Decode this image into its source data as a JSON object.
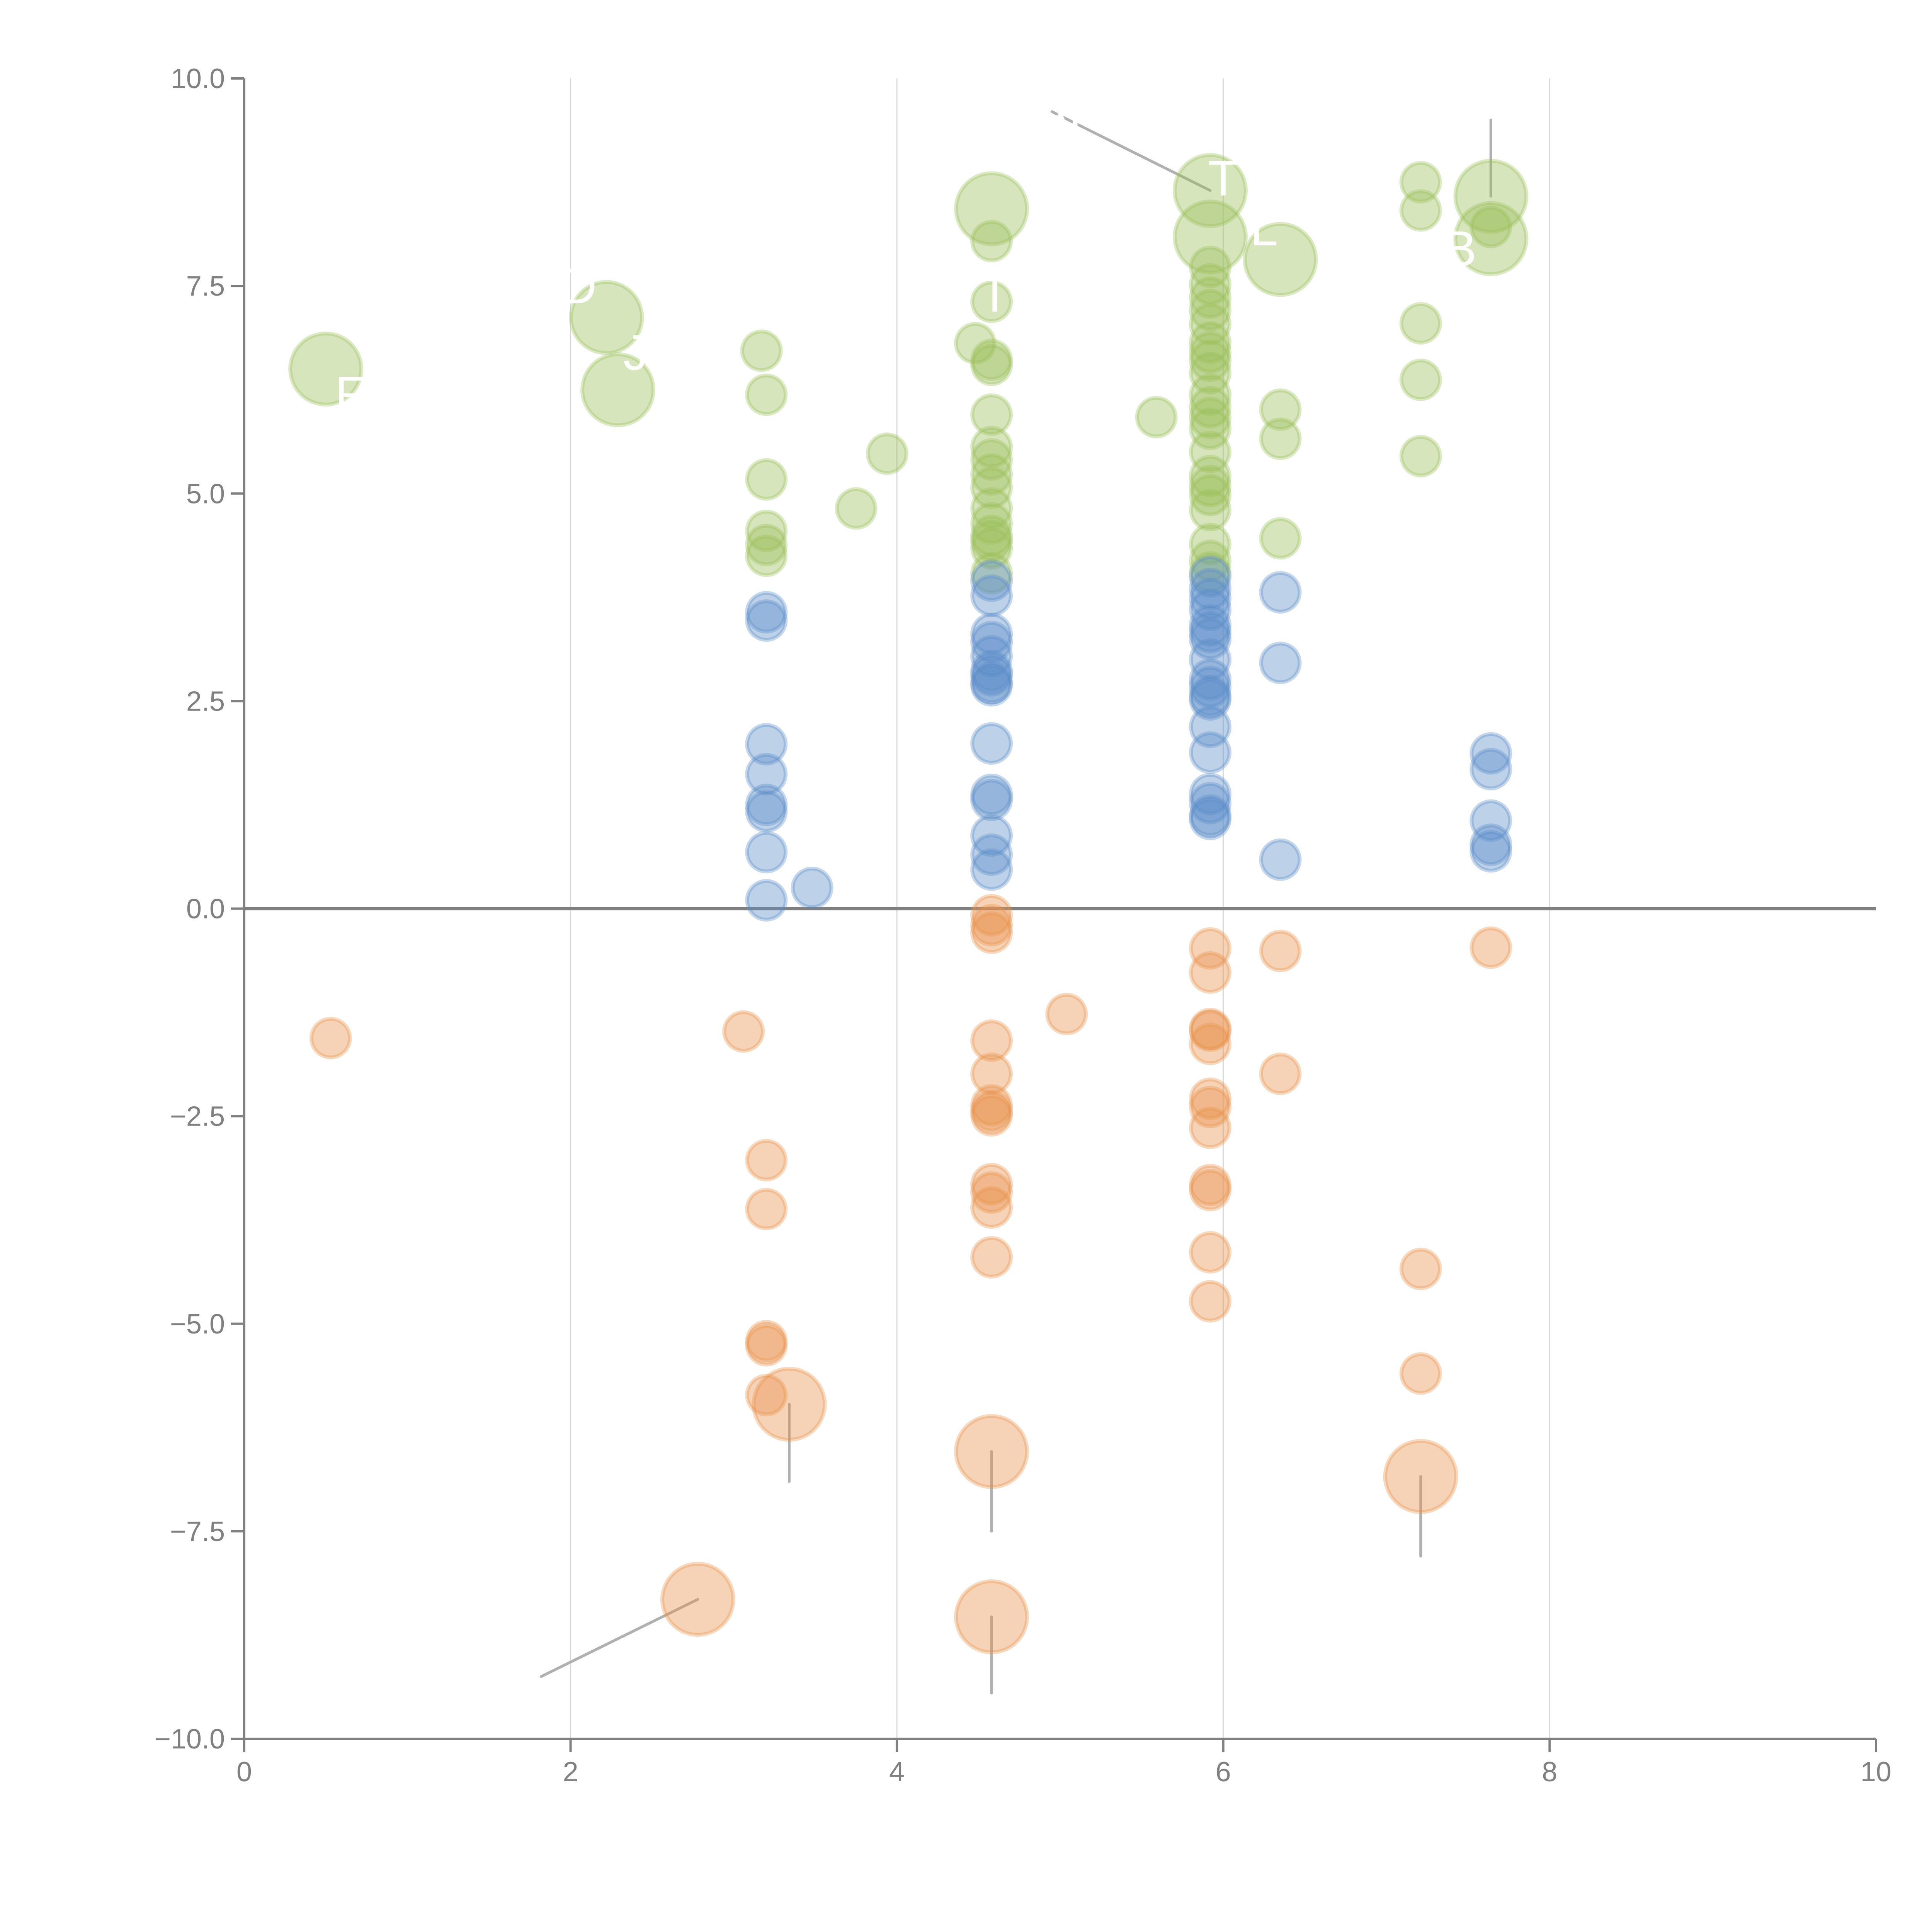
{
  "chart_data": {
    "type": "scatter",
    "subtype": "bubble",
    "title": "",
    "xlabel": "",
    "ylabel": "",
    "xlim": [
      0,
      10
    ],
    "ylim": [
      -10,
      10
    ],
    "x_ticks": [
      "0",
      "2",
      "4",
      "6",
      "8",
      "10"
    ],
    "x_tick_values": [
      0,
      2,
      4,
      6,
      8,
      10
    ],
    "y_ticks": [
      "10.0",
      "7.5",
      "5.0",
      "2.5",
      "0.0",
      "−2.5",
      "−5.0",
      "−7.5",
      "−10.0"
    ],
    "y_tick_values": [
      10,
      7.5,
      5,
      2.5,
      0,
      -2.5,
      -5,
      -7.5,
      -10
    ],
    "grid": "vertical",
    "zero_line": true,
    "legend": "none",
    "series": [
      {
        "name": "green",
        "color": "#9cbf5a",
        "points": [
          {
            "x": 0.5,
            "y": 6.5,
            "size": "large"
          },
          {
            "x": 2.22,
            "y": 7.12,
            "size": "large"
          },
          {
            "x": 2.29,
            "y": 6.25,
            "size": "large"
          },
          {
            "x": 3.17,
            "y": 6.72
          },
          {
            "x": 3.2,
            "y": 6.19
          },
          {
            "x": 3.2,
            "y": 5.17
          },
          {
            "x": 3.2,
            "y": 4.55
          },
          {
            "x": 3.2,
            "y": 4.38
          },
          {
            "x": 3.2,
            "y": 4.25
          },
          {
            "x": 3.75,
            "y": 4.82
          },
          {
            "x": 3.94,
            "y": 5.48
          },
          {
            "x": 4.48,
            "y": 6.81
          },
          {
            "x": 4.58,
            "y": 8.43,
            "size": "large"
          },
          {
            "x": 4.58,
            "y": 8.04
          },
          {
            "x": 4.58,
            "y": 7.31
          },
          {
            "x": 4.58,
            "y": 6.61
          },
          {
            "x": 4.58,
            "y": 6.55
          },
          {
            "x": 4.58,
            "y": 5.95
          },
          {
            "x": 4.58,
            "y": 5.56
          },
          {
            "x": 4.58,
            "y": 5.41
          },
          {
            "x": 4.58,
            "y": 5.23
          },
          {
            "x": 4.58,
            "y": 5.07
          },
          {
            "x": 4.58,
            "y": 4.82
          },
          {
            "x": 4.58,
            "y": 4.64
          },
          {
            "x": 4.58,
            "y": 4.49
          },
          {
            "x": 4.58,
            "y": 4.43
          },
          {
            "x": 4.58,
            "y": 4.34
          },
          {
            "x": 4.58,
            "y": 4.04
          },
          {
            "x": 5.59,
            "y": 5.92
          },
          {
            "x": 5.92,
            "y": 8.65,
            "size": "large"
          },
          {
            "x": 5.92,
            "y": 8.09,
            "size": "large"
          },
          {
            "x": 5.92,
            "y": 7.73
          },
          {
            "x": 5.92,
            "y": 7.52
          },
          {
            "x": 5.92,
            "y": 7.36
          },
          {
            "x": 5.92,
            "y": 7.21
          },
          {
            "x": 5.92,
            "y": 7.04
          },
          {
            "x": 5.92,
            "y": 6.82
          },
          {
            "x": 5.92,
            "y": 6.7
          },
          {
            "x": 5.92,
            "y": 6.6
          },
          {
            "x": 5.92,
            "y": 6.45
          },
          {
            "x": 5.92,
            "y": 6.19
          },
          {
            "x": 5.92,
            "y": 6.04
          },
          {
            "x": 5.92,
            "y": 5.91
          },
          {
            "x": 5.92,
            "y": 5.78
          },
          {
            "x": 5.92,
            "y": 5.5
          },
          {
            "x": 5.92,
            "y": 5.21
          },
          {
            "x": 5.92,
            "y": 5.09
          },
          {
            "x": 5.92,
            "y": 4.98
          },
          {
            "x": 5.92,
            "y": 4.8
          },
          {
            "x": 5.92,
            "y": 4.39
          },
          {
            "x": 5.92,
            "y": 4.19
          },
          {
            "x": 5.92,
            "y": 4.05
          },
          {
            "x": 6.35,
            "y": 7.82,
            "size": "large"
          },
          {
            "x": 6.35,
            "y": 6.01
          },
          {
            "x": 6.35,
            "y": 5.66
          },
          {
            "x": 6.35,
            "y": 4.46
          },
          {
            "x": 7.21,
            "y": 8.75
          },
          {
            "x": 7.21,
            "y": 8.41
          },
          {
            "x": 7.21,
            "y": 7.05
          },
          {
            "x": 7.21,
            "y": 6.37
          },
          {
            "x": 7.21,
            "y": 5.45
          },
          {
            "x": 7.64,
            "y": 8.58,
            "size": "large"
          },
          {
            "x": 7.64,
            "y": 8.07,
            "size": "large"
          },
          {
            "x": 7.64,
            "y": 8.21
          }
        ]
      },
      {
        "name": "blue",
        "color": "#5b8cc8",
        "points": [
          {
            "x": 3.2,
            "y": 3.57
          },
          {
            "x": 3.2,
            "y": 3.47
          },
          {
            "x": 3.2,
            "y": 1.98
          },
          {
            "x": 3.2,
            "y": 1.62
          },
          {
            "x": 3.2,
            "y": 1.25
          },
          {
            "x": 3.2,
            "y": 1.17
          },
          {
            "x": 3.2,
            "y": 0.68
          },
          {
            "x": 3.2,
            "y": 0.1
          },
          {
            "x": 3.48,
            "y": 0.25
          },
          {
            "x": 4.58,
            "y": 3.95
          },
          {
            "x": 4.58,
            "y": 3.77
          },
          {
            "x": 4.58,
            "y": 3.31
          },
          {
            "x": 4.58,
            "y": 3.21
          },
          {
            "x": 4.58,
            "y": 3.04
          },
          {
            "x": 4.58,
            "y": 2.86
          },
          {
            "x": 4.58,
            "y": 2.81
          },
          {
            "x": 4.58,
            "y": 2.72
          },
          {
            "x": 4.58,
            "y": 2.69
          },
          {
            "x": 4.58,
            "y": 1.99
          },
          {
            "x": 4.58,
            "y": 1.37
          },
          {
            "x": 4.58,
            "y": 1.31
          },
          {
            "x": 4.58,
            "y": 0.88
          },
          {
            "x": 4.58,
            "y": 0.65
          },
          {
            "x": 4.58,
            "y": 0.47
          },
          {
            "x": 5.92,
            "y": 4.0
          },
          {
            "x": 5.92,
            "y": 3.85
          },
          {
            "x": 5.92,
            "y": 3.73
          },
          {
            "x": 5.92,
            "y": 3.6
          },
          {
            "x": 5.92,
            "y": 3.41
          },
          {
            "x": 5.92,
            "y": 3.33
          },
          {
            "x": 5.92,
            "y": 3.25
          },
          {
            "x": 5.92,
            "y": 3.0
          },
          {
            "x": 5.92,
            "y": 2.76
          },
          {
            "x": 5.92,
            "y": 2.67
          },
          {
            "x": 5.92,
            "y": 2.56
          },
          {
            "x": 5.92,
            "y": 2.52
          },
          {
            "x": 5.92,
            "y": 2.19
          },
          {
            "x": 5.92,
            "y": 1.88
          },
          {
            "x": 5.92,
            "y": 1.38
          },
          {
            "x": 5.92,
            "y": 1.27
          },
          {
            "x": 5.92,
            "y": 1.12
          },
          {
            "x": 5.92,
            "y": 1.08
          },
          {
            "x": 6.35,
            "y": 3.81
          },
          {
            "x": 6.35,
            "y": 2.96
          },
          {
            "x": 6.35,
            "y": 0.59
          },
          {
            "x": 7.64,
            "y": 1.87
          },
          {
            "x": 7.64,
            "y": 1.68
          },
          {
            "x": 7.64,
            "y": 1.06
          },
          {
            "x": 7.64,
            "y": 0.77
          },
          {
            "x": 7.64,
            "y": 0.69
          }
        ]
      },
      {
        "name": "orange",
        "color": "#e8914a",
        "points": [
          {
            "x": 0.53,
            "y": -1.56
          },
          {
            "x": 2.78,
            "y": -8.32,
            "size": "large"
          },
          {
            "x": 3.06,
            "y": -1.48
          },
          {
            "x": 3.2,
            "y": -3.03
          },
          {
            "x": 3.2,
            "y": -3.62
          },
          {
            "x": 3.2,
            "y": -5.21
          },
          {
            "x": 3.2,
            "y": -5.26
          },
          {
            "x": 3.2,
            "y": -5.86
          },
          {
            "x": 3.34,
            "y": -5.97,
            "size": "large"
          },
          {
            "x": 4.58,
            "y": -0.08
          },
          {
            "x": 4.58,
            "y": -0.2
          },
          {
            "x": 4.58,
            "y": -0.29
          },
          {
            "x": 4.58,
            "y": -1.59
          },
          {
            "x": 4.58,
            "y": -1.99
          },
          {
            "x": 4.58,
            "y": -2.37
          },
          {
            "x": 4.58,
            "y": -2.44
          },
          {
            "x": 4.58,
            "y": -2.49
          },
          {
            "x": 4.58,
            "y": -3.32
          },
          {
            "x": 4.58,
            "y": -3.42
          },
          {
            "x": 4.58,
            "y": -3.6
          },
          {
            "x": 4.58,
            "y": -4.2
          },
          {
            "x": 4.58,
            "y": -6.54,
            "size": "large"
          },
          {
            "x": 4.58,
            "y": -8.53,
            "size": "large"
          },
          {
            "x": 5.04,
            "y": -1.27
          },
          {
            "x": 5.92,
            "y": -0.48
          },
          {
            "x": 5.92,
            "y": -0.77
          },
          {
            "x": 5.92,
            "y": -1.45
          },
          {
            "x": 5.92,
            "y": -1.47
          },
          {
            "x": 5.92,
            "y": -1.63
          },
          {
            "x": 5.92,
            "y": -2.29
          },
          {
            "x": 5.92,
            "y": -2.39
          },
          {
            "x": 5.92,
            "y": -2.64
          },
          {
            "x": 5.92,
            "y": -3.33
          },
          {
            "x": 5.92,
            "y": -3.39
          },
          {
            "x": 5.92,
            "y": -4.14
          },
          {
            "x": 5.92,
            "y": -4.73
          },
          {
            "x": 6.35,
            "y": -0.51
          },
          {
            "x": 6.35,
            "y": -1.99
          },
          {
            "x": 7.21,
            "y": -4.34
          },
          {
            "x": 7.21,
            "y": -5.6
          },
          {
            "x": 7.21,
            "y": -6.84,
            "size": "large"
          },
          {
            "x": 7.64,
            "y": -0.47
          }
        ]
      }
    ],
    "annotations": [
      {
        "text": "F",
        "anchor": [
          0.5,
          6.5
        ],
        "label_pos": [
          0.65,
          6.2
        ]
      },
      {
        "text": "D",
        "anchor": [
          2.22,
          7.12
        ],
        "label_pos": [
          2.05,
          7.5
        ]
      },
      {
        "text": "J",
        "anchor": [
          2.29,
          6.25
        ],
        "label_pos": [
          2.4,
          6.7
        ]
      },
      {
        "text": "T",
        "anchor": [
          4.58,
          8.43
        ],
        "label_pos": [
          4.6,
          7.4
        ]
      },
      {
        "text": "SAK",
        "anchor": [
          5.92,
          8.65
        ],
        "label_pos": [
          4.95,
          9.6
        ]
      },
      {
        "text": "T",
        "anchor": [
          5.92,
          8.09
        ],
        "label_pos": [
          6.0,
          8.8
        ]
      },
      {
        "text": "L",
        "anchor": [
          6.35,
          7.82
        ],
        "label_pos": [
          6.25,
          8.2
        ]
      },
      {
        "text": "B",
        "anchor": [
          7.64,
          8.07
        ],
        "label_pos": [
          7.45,
          7.95
        ]
      },
      {
        "text": "",
        "anchor": [
          7.64,
          8.58
        ],
        "label_pos": [
          7.64,
          9.5
        ]
      },
      {
        "text": "",
        "anchor": [
          3.34,
          -5.97
        ],
        "label_pos": [
          3.34,
          -6.9
        ]
      },
      {
        "text": "",
        "anchor": [
          4.58,
          -6.54
        ],
        "label_pos": [
          4.58,
          -7.5
        ]
      },
      {
        "text": "",
        "anchor": [
          7.21,
          -6.84
        ],
        "label_pos": [
          7.21,
          -7.8
        ]
      },
      {
        "text": "",
        "anchor": [
          2.78,
          -8.32
        ],
        "label_pos": [
          1.82,
          -9.25
        ]
      },
      {
        "text": "",
        "anchor": [
          4.58,
          -8.53
        ],
        "label_pos": [
          4.58,
          -9.45
        ]
      }
    ]
  }
}
